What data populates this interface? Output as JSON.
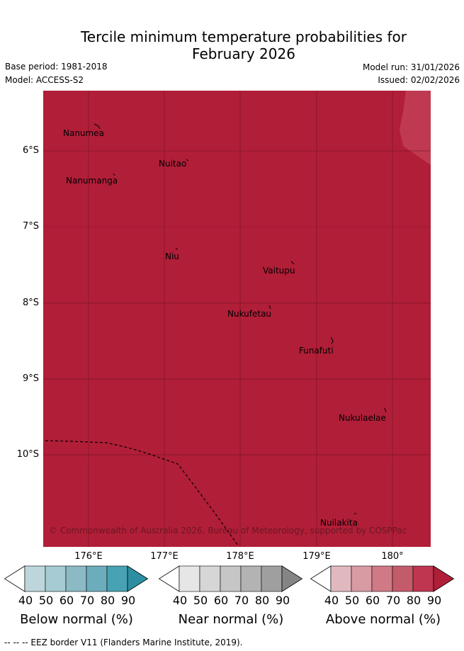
{
  "title_line1": "Tercile minimum temperature probabilities for",
  "title_line2": "February 2026",
  "base_period": "Base period: 1981-2018",
  "model": "Model: ACCESS-S2",
  "model_run": "Model run: 31/01/2026",
  "issued": "Issued: 02/02/2026",
  "lat_labels": [
    "6°S",
    "7°S",
    "8°S",
    "9°S",
    "10°S"
  ],
  "lon_labels": [
    "176°E",
    "177°E",
    "178°E",
    "179°E",
    "180°"
  ],
  "places": [
    "Nanumea",
    "Nuitao",
    "Nanumanga",
    "Niu",
    "Vaitupu",
    "Nukufetau",
    "Funafuti",
    "Nukulaelae",
    "Nuilakita"
  ],
  "copyright": "© Commonwealth of Australia 2026, Bureau of Meteorology, supported by COSPPac",
  "colorbar_ticks": [
    "40",
    "50",
    "60",
    "70",
    "80",
    "90"
  ],
  "colorbars": {
    "below": {
      "label": "Below normal (%)",
      "colors": [
        "#ffffff",
        "#bcd6dc",
        "#a6cbd2",
        "#8bbac5",
        "#6badbc",
        "#47a2b3",
        "#2d8ea1"
      ]
    },
    "near": {
      "label": "Near normal (%)",
      "colors": [
        "#ffffff",
        "#e6e6e6",
        "#d6d6d6",
        "#c6c6c6",
        "#b3b3b3",
        "#9f9f9f",
        "#858585"
      ]
    },
    "above": {
      "label": "Above normal (%)",
      "colors": [
        "#ffffff",
        "#e2b8bf",
        "#d89aa3",
        "#cf7a86",
        "#c45b6b",
        "#be3650",
        "#b11e38"
      ]
    }
  },
  "map_colors": {
    "dominant": "#b11e38",
    "lighter_patch": "#bf3a51",
    "grid": "#6a1222"
  },
  "footnote": "-- -- -- EEZ border V11 (Flanders Marine Institute, 2019)."
}
